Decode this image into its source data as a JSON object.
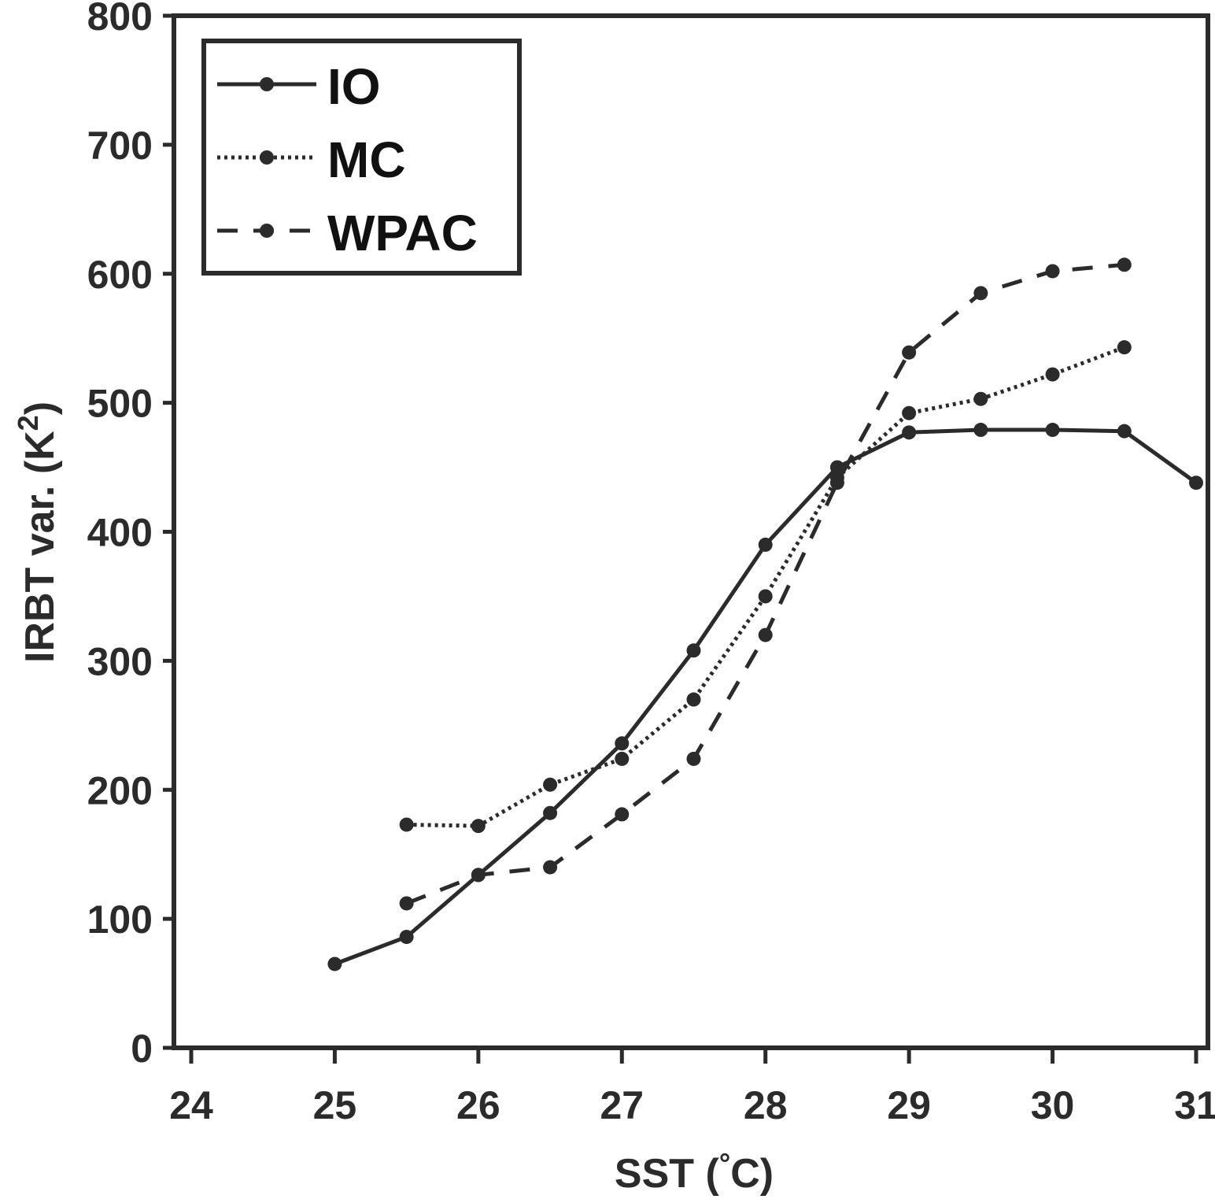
{
  "chart_data": {
    "type": "line",
    "xlabel": "SST (",
    "xlabel_degree": "°",
    "xlabel_unit": "C)",
    "ylabel": "IRBT var. (K",
    "ylabel_sup": "2",
    "ylabel_close": ")",
    "xlim": [
      24,
      31
    ],
    "ylim": [
      0,
      800
    ],
    "xticks": [
      "24",
      "25",
      "26",
      "27",
      "28",
      "29",
      "30",
      "31"
    ],
    "yticks": [
      "0",
      "100",
      "200",
      "300",
      "400",
      "500",
      "600",
      "700",
      "800"
    ],
    "grid": false,
    "legend_position": "top-left",
    "color": "#2b2b2b",
    "series": [
      {
        "name": "IO",
        "style": "solid",
        "x": [
          25,
          25.5,
          26,
          26.5,
          27,
          27.5,
          28,
          28.5,
          29,
          29.5,
          30,
          30.5,
          31
        ],
        "y": [
          65,
          86,
          134,
          182,
          236,
          308,
          390,
          450,
          477,
          479,
          479,
          478,
          438
        ]
      },
      {
        "name": "MC",
        "style": "dotted",
        "x": [
          25.5,
          26,
          26.5,
          27,
          27.5,
          28,
          28.5,
          29,
          29.5,
          30,
          30.5
        ],
        "y": [
          173,
          172,
          204,
          224,
          270,
          350,
          442,
          492,
          503,
          522,
          543
        ]
      },
      {
        "name": "WPAC",
        "style": "dashed",
        "x": [
          25.5,
          26,
          26.5,
          27,
          27.5,
          28,
          28.5,
          29,
          29.5,
          30,
          30.5
        ],
        "y": [
          112,
          134,
          140,
          181,
          224,
          320,
          438,
          539,
          585,
          602,
          607
        ]
      }
    ]
  }
}
